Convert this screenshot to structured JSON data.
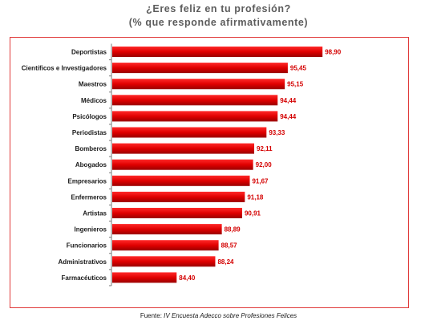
{
  "chart_data": {
    "type": "bar",
    "orientation": "horizontal",
    "title": "¿Eres feliz en tu profesión?",
    "subtitle": "(% que responde afirmativamente)",
    "categories": [
      "Deportistas",
      "Científicos e Investigadores",
      "Maestros",
      "Médicos",
      "Psicólogos",
      "Periodistas",
      "Bomberos",
      "Abogados",
      "Empresarios",
      "Enfermeros",
      "Artistas",
      "Ingenieros",
      "Funcionarios",
      "Administrativos",
      "Farmacéuticos"
    ],
    "values": [
      98.9,
      95.45,
      95.15,
      94.44,
      94.44,
      93.33,
      92.11,
      92.0,
      91.67,
      91.18,
      90.91,
      88.89,
      88.57,
      88.24,
      84.4
    ],
    "value_labels": [
      "98,90",
      "95,45",
      "95,15",
      "94,44",
      "94,44",
      "93,33",
      "92,11",
      "92,00",
      "91,67",
      "91,18",
      "90,91",
      "88,89",
      "88,57",
      "88,24",
      "84,40"
    ],
    "xlim": [
      78,
      100
    ],
    "grid": false,
    "legend": "none",
    "bar_color": "#e00000"
  },
  "source": {
    "prefix": "Fuente: ",
    "text": "IV Encuesta Adecco sobre Profesiones Felices"
  }
}
